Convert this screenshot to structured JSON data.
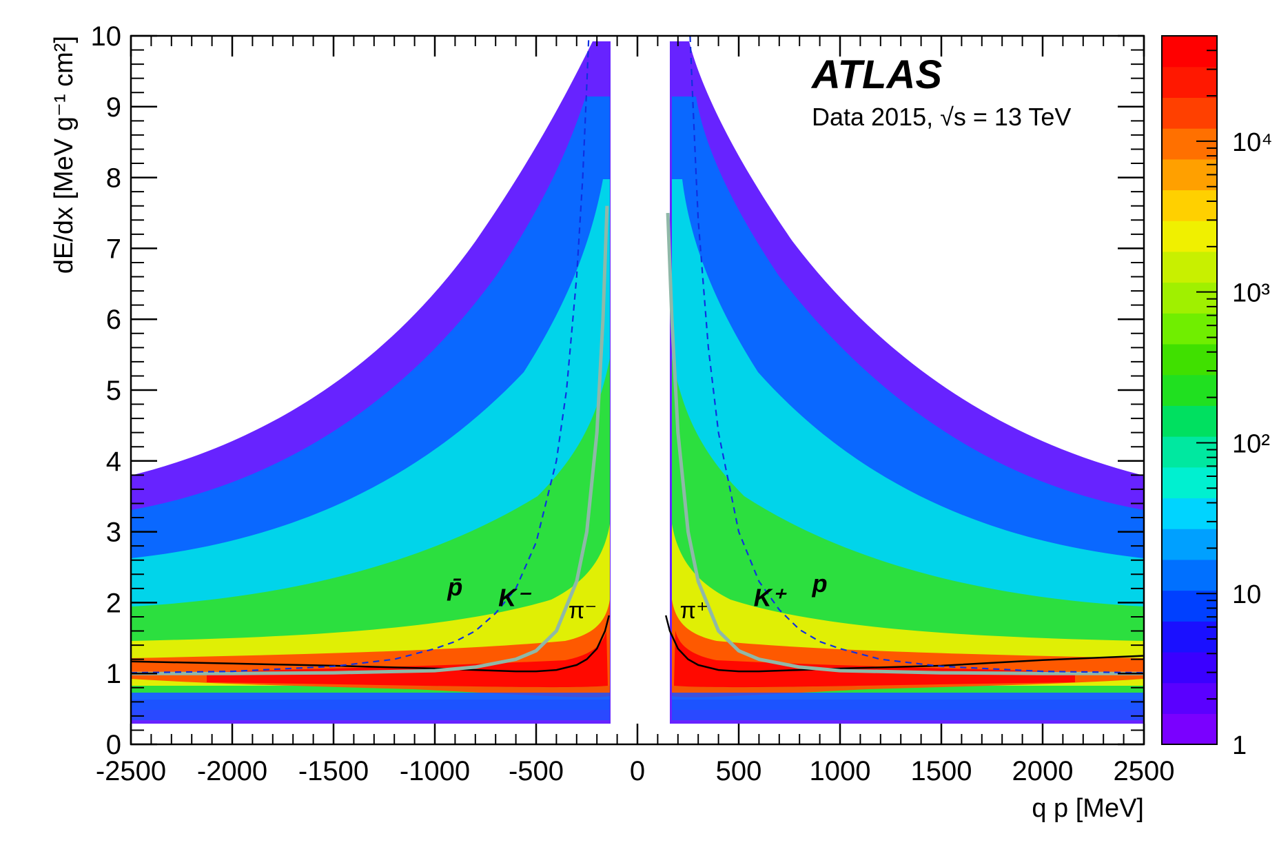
{
  "chart_data": {
    "type": "heatmap",
    "title": "",
    "xlabel": "q p [MeV]",
    "ylabel": "dE/dx  [MeV g⁻¹ cm²]",
    "xlim": [
      -2500,
      2500
    ],
    "ylim": [
      0,
      10
    ],
    "x_ticks": [
      -2500,
      -2000,
      -1500,
      -1000,
      -500,
      0,
      500,
      1000,
      1500,
      2000,
      2500
    ],
    "y_ticks": [
      0,
      1,
      2,
      3,
      4,
      5,
      6,
      7,
      8,
      9,
      10
    ],
    "x_tick_labels": [
      "-2500",
      "-2000",
      "-1500",
      "-1000",
      "-500",
      "0",
      "500",
      "1000",
      "1500",
      "2000",
      "2500"
    ],
    "y_tick_labels": [
      "0",
      "1",
      "2",
      "3",
      "4",
      "5",
      "6",
      "7",
      "8",
      "9",
      "10"
    ],
    "colorbar": {
      "scale": "log",
      "range": [
        1,
        50000
      ],
      "tick_labels": [
        "1",
        "10",
        "10²",
        "10³",
        "10⁴"
      ],
      "tick_values": [
        1,
        10,
        100,
        1000,
        10000
      ],
      "colors": [
        "#7a00ff",
        "#5a00ff",
        "#3a00ff",
        "#1a10ff",
        "#0040ff",
        "#0070ff",
        "#00a0ff",
        "#00d4ff",
        "#00f0d0",
        "#00e8a0",
        "#00e060",
        "#20e020",
        "#40e000",
        "#70ee00",
        "#a0f000",
        "#c8f000",
        "#f0f000",
        "#ffd000",
        "#ffa000",
        "#ff7000",
        "#ff4000",
        "#ff1800",
        "#ff0000"
      ]
    },
    "experiment": "ATLAS",
    "dataset_label": "Data 2015, √s = 13 TeV",
    "particle_labels": [
      {
        "name": "p̄",
        "x": -900,
        "y": 2.1
      },
      {
        "name": "K⁻",
        "x": -610,
        "y": 1.95
      },
      {
        "name": "π⁻",
        "x": -270,
        "y": 1.78
      },
      {
        "name": "π⁺",
        "x": 280,
        "y": 1.78
      },
      {
        "name": "K⁺",
        "x": 650,
        "y": 1.95
      },
      {
        "name": "p",
        "x": 900,
        "y": 2.15
      }
    ],
    "series": [
      {
        "name": "π",
        "style": "black-solid",
        "color": "#000000",
        "x": [
          -140,
          -160,
          -200,
          -250,
          -300,
          -400,
          -500,
          -600,
          -800,
          -1000,
          -1500,
          -2000,
          -2500,
          140,
          160,
          200,
          250,
          300,
          400,
          500,
          600,
          800,
          1000,
          1500,
          2000,
          2500
        ],
        "y": [
          1.82,
          1.6,
          1.35,
          1.2,
          1.12,
          1.05,
          1.03,
          1.03,
          1.05,
          1.07,
          1.11,
          1.14,
          1.17,
          1.82,
          1.6,
          1.35,
          1.2,
          1.12,
          1.05,
          1.03,
          1.03,
          1.05,
          1.07,
          1.11,
          1.19,
          1.25
        ]
      },
      {
        "name": "K",
        "style": "grey-solid",
        "color": "#8fb8a8",
        "x": [
          -150,
          -170,
          -200,
          -250,
          -300,
          -400,
          -500,
          -600,
          -800,
          -1000,
          -1500,
          -2000,
          -2500,
          150,
          170,
          200,
          250,
          300,
          400,
          500,
          600,
          800,
          1000,
          1500,
          2000,
          2500
        ],
        "y": [
          7.6,
          6.0,
          4.4,
          3.0,
          2.3,
          1.6,
          1.32,
          1.2,
          1.09,
          1.04,
          1.01,
          1.0,
          1.0,
          7.5,
          6.0,
          4.4,
          3.0,
          2.3,
          1.6,
          1.32,
          1.2,
          1.09,
          1.04,
          1.01,
          1.0,
          1.0
        ]
      },
      {
        "name": "p",
        "style": "blue-dashed",
        "color": "#1030e0",
        "x": [
          -240,
          -250,
          -270,
          -300,
          -350,
          -400,
          -500,
          -600,
          -700,
          -800,
          -900,
          -1000,
          -1200,
          -1500,
          -2000,
          -2500,
          260,
          270,
          290,
          300,
          350,
          400,
          500,
          600,
          700,
          800,
          900,
          1000,
          1200,
          1500,
          2000,
          2500
        ],
        "y": [
          10.0,
          9.3,
          8.0,
          6.6,
          5.0,
          4.0,
          2.85,
          2.2,
          1.85,
          1.6,
          1.45,
          1.35,
          1.2,
          1.1,
          1.03,
          1.01,
          10.0,
          9.3,
          8.0,
          7.4,
          5.6,
          4.4,
          3.0,
          2.3,
          1.9,
          1.62,
          1.45,
          1.35,
          1.2,
          1.1,
          1.03,
          1.01
        ]
      }
    ]
  }
}
